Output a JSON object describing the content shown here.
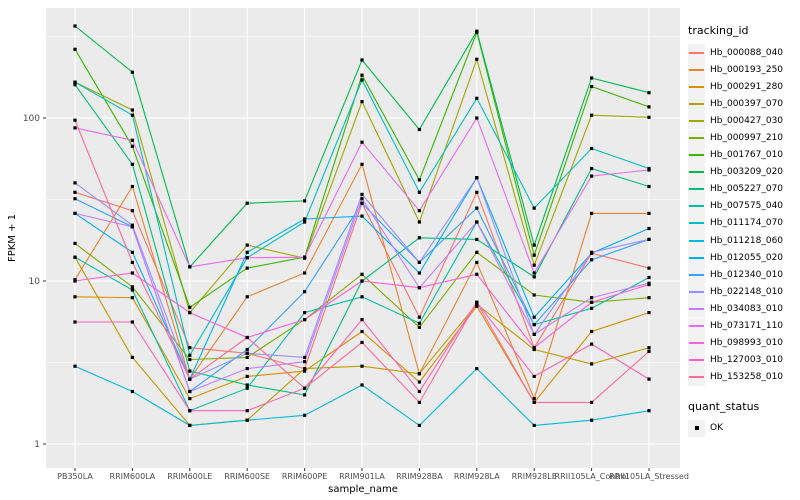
{
  "chart_data": {
    "type": "line",
    "title": "",
    "xlabel": "sample_name",
    "ylabel": "FPKM + 1",
    "y_scale": "log10",
    "y_ticks": [
      "1",
      "10",
      "100"
    ],
    "y_tick_values": [
      1,
      10,
      100
    ],
    "ylim": [
      0.7,
      470
    ],
    "grid": true,
    "legend_position": "right",
    "legend_title": "tracking_id",
    "quant_legend": {
      "title": "quant_status",
      "items": [
        {
          "label": "OK"
        }
      ]
    },
    "point_marker": "black-square",
    "panel_bg": "#EBEBEB",
    "grid_color": "#FFFFFF",
    "tick_text_color": "#4D4D4D",
    "categories": [
      "PB350LA",
      "RRIM600LA",
      "RRIM600LE",
      "RRIM600SE",
      "RRIM600PE",
      "RRIM901LA",
      "RRIM928BA",
      "RRIM928LA",
      "RRIM928LE",
      "RRII105LA_Control",
      "RRII105LA_Stressed"
    ],
    "series": [
      {
        "name": "Hb_000088_040",
        "color": "#F8766D",
        "values": [
          35,
          27,
          3.9,
          3.6,
          2.9,
          30,
          6.0,
          35,
          3.9,
          14.8,
          12.0
        ]
      },
      {
        "name": "Hb_000193_250",
        "color": "#EA8331",
        "values": [
          10.2,
          38,
          2.5,
          8.0,
          11.2,
          52,
          2.7,
          13,
          1.9,
          26,
          26
        ]
      },
      {
        "name": "Hb_000291_280",
        "color": "#D89000",
        "values": [
          8.0,
          7.9,
          1.9,
          2.6,
          2.8,
          4.9,
          2.4,
          7.0,
          1.8,
          4.9,
          6.4
        ]
      },
      {
        "name": "Hb_000397_070",
        "color": "#C09B00",
        "values": [
          14,
          3.4,
          1.3,
          1.4,
          2.9,
          3.0,
          2.7,
          7.2,
          3.8,
          3.1,
          3.9
        ]
      },
      {
        "name": "Hb_000427_030",
        "color": "#A3A500",
        "values": [
          166,
          112,
          6.4,
          16.6,
          13.8,
          126,
          23,
          229,
          12.5,
          104,
          101
        ]
      },
      {
        "name": "Hb_000997_210",
        "color": "#7CAE00",
        "values": [
          17,
          9.2,
          3.3,
          3.4,
          5.8,
          11,
          5.2,
          15,
          8.2,
          7.4,
          7.9
        ]
      },
      {
        "name": "Hb_001767_010",
        "color": "#39B600",
        "values": [
          264,
          67,
          6.9,
          12,
          14,
          183,
          41.7,
          335,
          14.4,
          156,
          117
        ]
      },
      {
        "name": "Hb_003209_020",
        "color": "#00BB4E",
        "values": [
          367,
          191,
          12.2,
          30,
          31,
          227,
          85,
          341,
          16.6,
          176,
          143
        ]
      },
      {
        "name": "Hb_005227_070",
        "color": "#00BF7D",
        "values": [
          160,
          52,
          2.8,
          2.3,
          2.0,
          10,
          18.4,
          18,
          10.6,
          49,
          38
        ]
      },
      {
        "name": "Hb_007575_040",
        "color": "#00C1A3",
        "values": [
          14,
          8.8,
          1.6,
          2.2,
          6.4,
          8.0,
          5.5,
          23,
          5.4,
          6.8,
          10.5
        ]
      },
      {
        "name": "Hb_011174_070",
        "color": "#00BFC4",
        "values": [
          166,
          104,
          3.5,
          13.9,
          23,
          171,
          35,
          132,
          28,
          65,
          49
        ]
      },
      {
        "name": "Hb_011218_060",
        "color": "#00BAE0",
        "values": [
          3.0,
          2.1,
          1.3,
          1.4,
          1.5,
          2.3,
          1.3,
          2.9,
          1.3,
          1.4,
          1.6
        ]
      },
      {
        "name": "Hb_012055_020",
        "color": "#00B0F6",
        "values": [
          26,
          15,
          2.5,
          15,
          24,
          25,
          11.2,
          43,
          6.0,
          14.8,
          21
        ]
      },
      {
        "name": "Hb_012340_010",
        "color": "#35A2FF",
        "values": [
          32,
          21.5,
          2.1,
          3.8,
          8.6,
          30,
          13,
          28,
          5.4,
          13.5,
          18
        ]
      },
      {
        "name": "Hb_022148_010",
        "color": "#9590FF",
        "values": [
          40,
          22,
          2.5,
          3.6,
          3.4,
          34,
          13,
          43,
          4.7,
          15,
          18
        ]
      },
      {
        "name": "Hb_034083_010",
        "color": "#C77CFF",
        "values": [
          26,
          21.5,
          2.1,
          2.9,
          3.2,
          32,
          9.1,
          23,
          4.7,
          7.9,
          9.7
        ]
      },
      {
        "name": "Hb_073171_110",
        "color": "#E76BF3",
        "values": [
          87,
          73,
          12.2,
          13.9,
          14,
          71,
          27,
          100,
          11.2,
          44,
          48
        ]
      },
      {
        "name": "Hb_098993_010",
        "color": "#FA62DB",
        "values": [
          10,
          11.2,
          6.4,
          4.5,
          5.8,
          10,
          9.1,
          11,
          3.9,
          7.4,
          9.5
        ]
      },
      {
        "name": "Hb_127003_010",
        "color": "#FF62BC",
        "values": [
          5.6,
          5.6,
          1.6,
          1.6,
          2.2,
          5.8,
          2.1,
          7.4,
          2.6,
          4.1,
          2.5
        ]
      },
      {
        "name": "Hb_153258_010",
        "color": "#FF6A98",
        "values": [
          97,
          13,
          2.5,
          4.5,
          2.2,
          4.2,
          1.8,
          7.4,
          1.8,
          1.8,
          3.7
        ]
      }
    ]
  }
}
